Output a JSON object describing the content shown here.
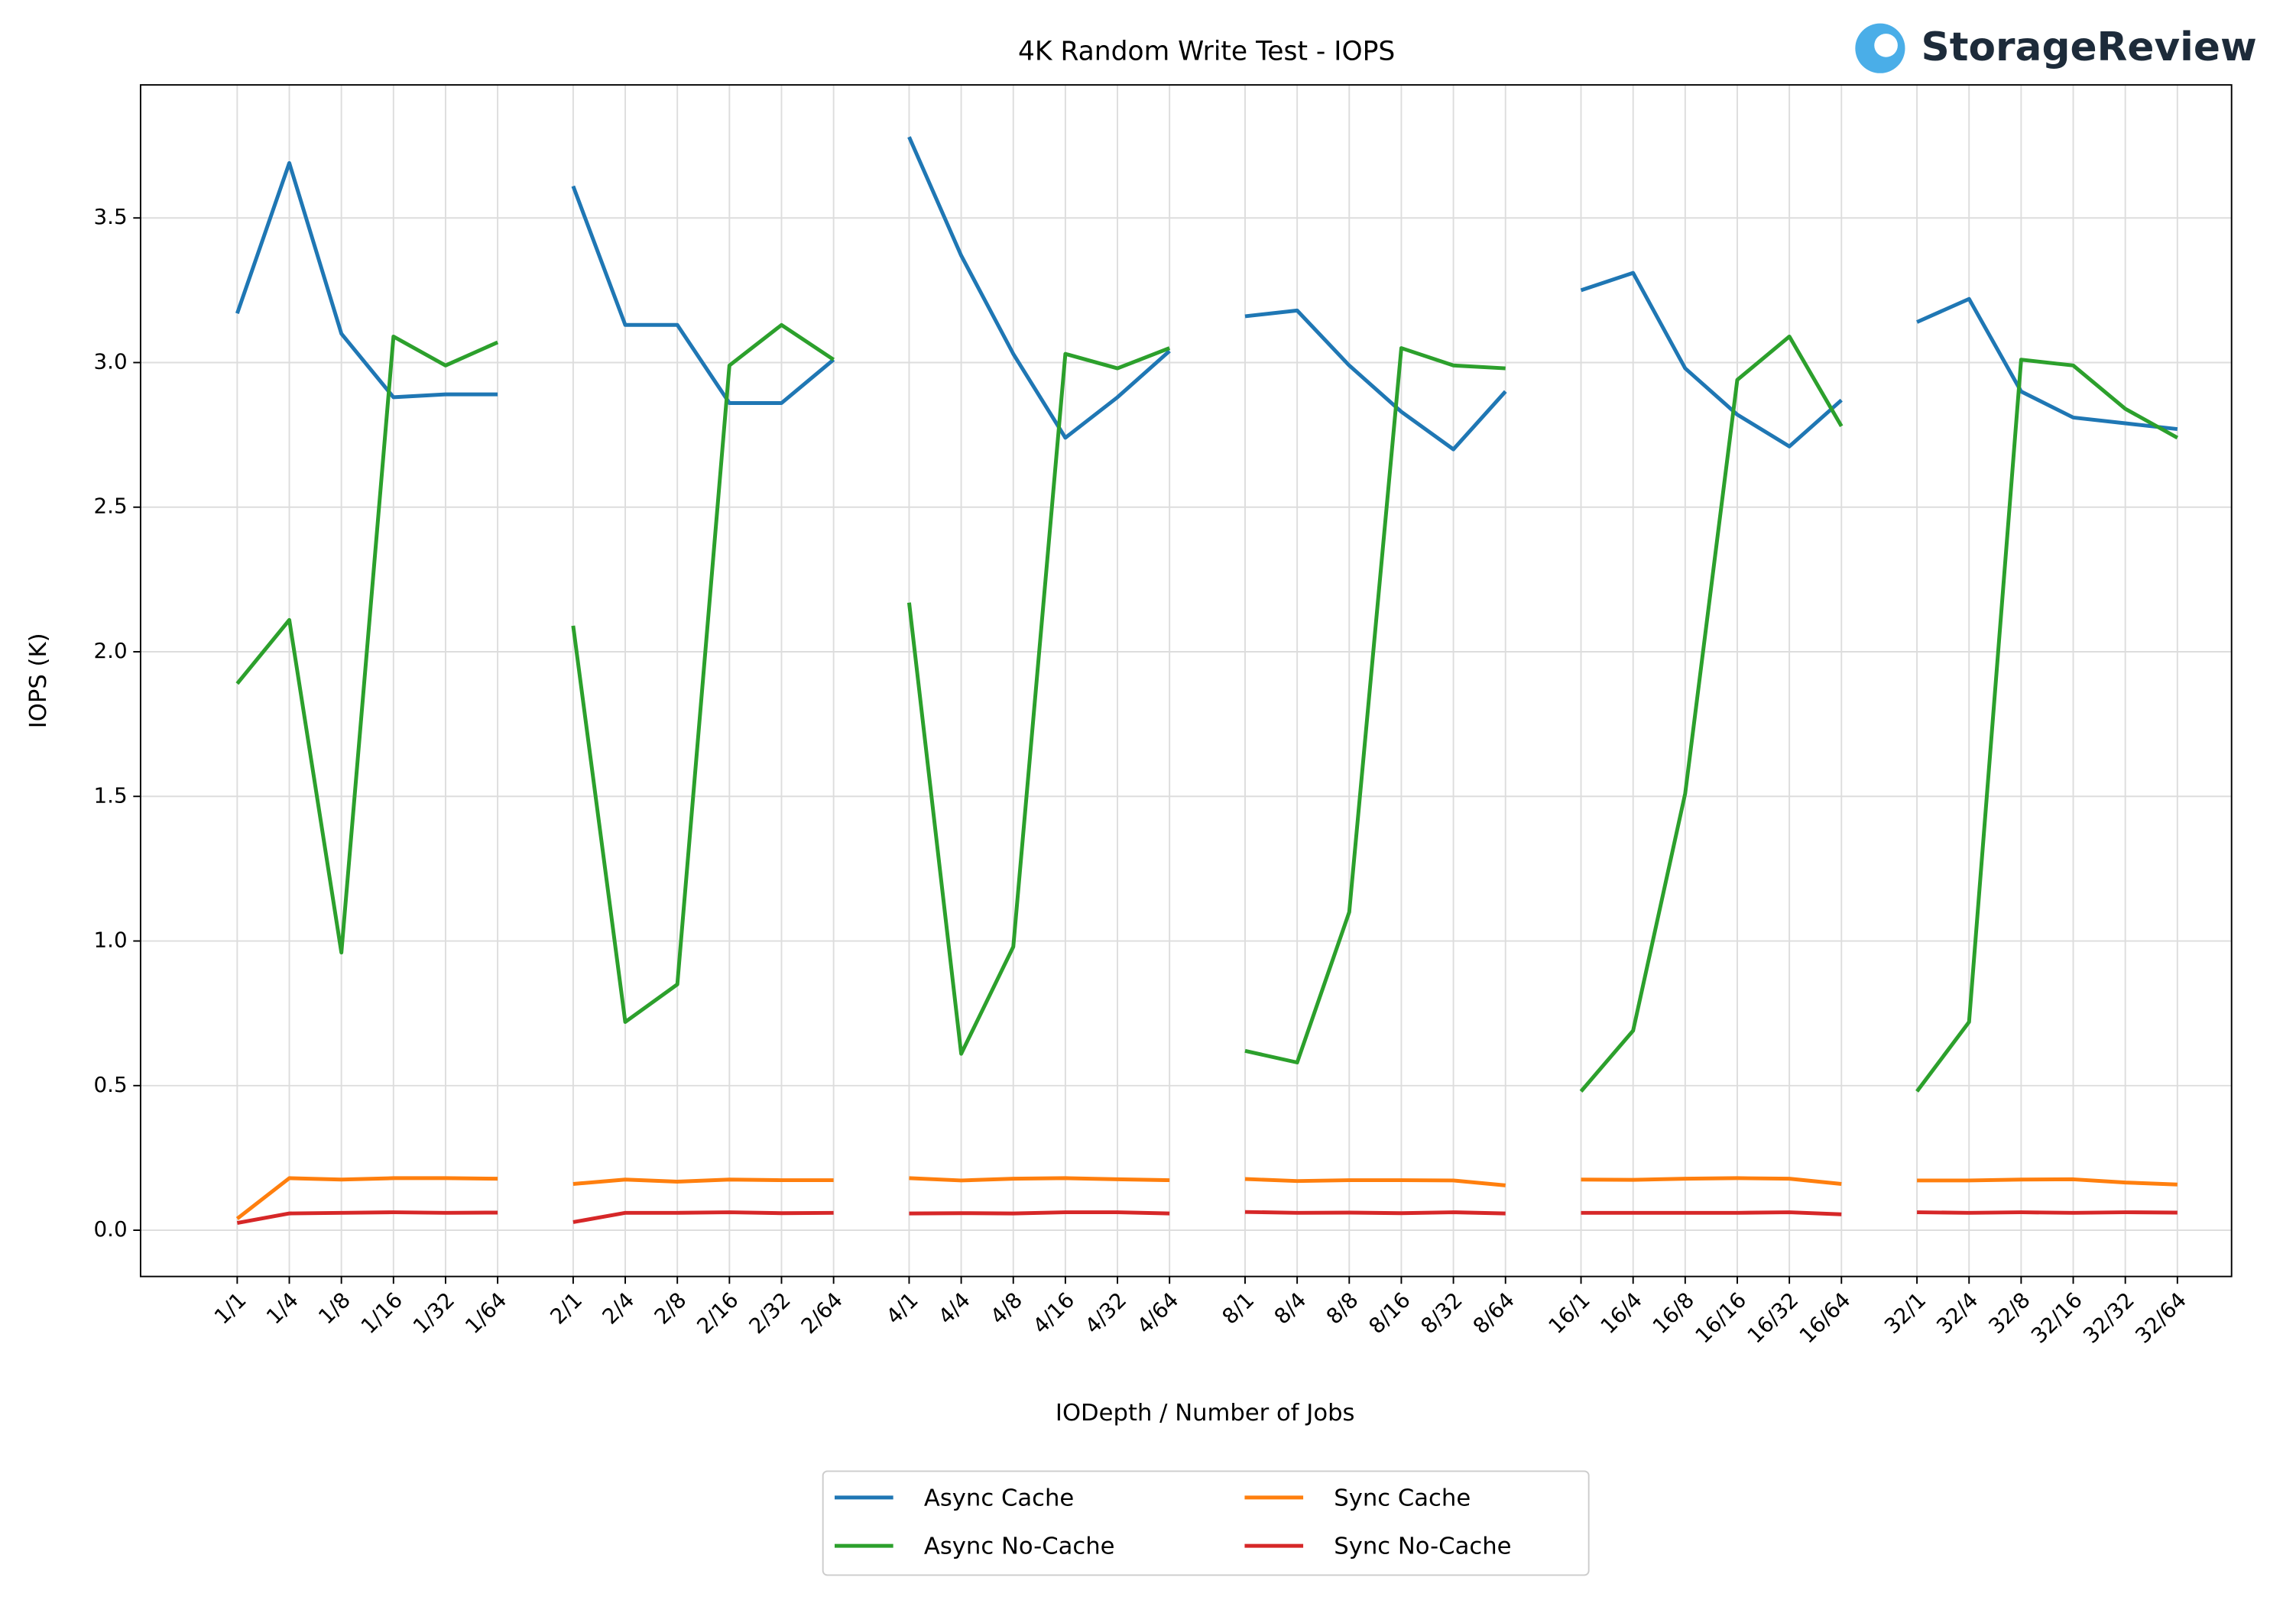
{
  "chart_data": {
    "type": "line",
    "title": "4K Random Write Test - IOPS",
    "logo": "StorageReview",
    "x_label": "IODepth / Number of Jobs",
    "y_label": "IOPS (K)",
    "categories": [
      "1/1",
      "1/4",
      "1/8",
      "1/16",
      "1/32",
      "1/64",
      null,
      "2/1",
      "2/4",
      "2/8",
      "2/16",
      "2/32",
      "2/64",
      null,
      "4/1",
      "4/4",
      "4/8",
      "4/16",
      "4/32",
      "4/64",
      null,
      "8/1",
      "8/4",
      "8/8",
      "8/16",
      "8/32",
      "8/64",
      null,
      "16/1",
      "16/4",
      "16/8",
      "16/16",
      "16/32",
      "16/64",
      null,
      "32/1",
      "32/4",
      "32/8",
      "32/16",
      "32/32",
      "32/64"
    ],
    "series": [
      {
        "name": "Async Cache",
        "color": "#1f77b4",
        "values": [
          3.17,
          3.69,
          3.1,
          2.88,
          2.89,
          2.89,
          null,
          3.61,
          3.13,
          3.13,
          2.86,
          2.86,
          3.01,
          null,
          3.78,
          3.37,
          3.03,
          2.74,
          2.88,
          3.04,
          null,
          3.16,
          3.18,
          2.99,
          2.83,
          2.7,
          2.9,
          null,
          3.25,
          3.31,
          2.98,
          2.82,
          2.71,
          2.87,
          null,
          3.14,
          3.22,
          2.9,
          2.81,
          2.79,
          2.77
        ]
      },
      {
        "name": "Async No-Cache",
        "color": "#2ca02c",
        "values": [
          1.89,
          2.11,
          0.96,
          3.09,
          2.99,
          3.07,
          null,
          2.09,
          0.72,
          0.85,
          2.99,
          3.13,
          3.01,
          null,
          2.17,
          0.61,
          0.98,
          3.03,
          2.98,
          3.05,
          null,
          0.62,
          0.58,
          1.1,
          3.05,
          2.99,
          2.98,
          null,
          0.48,
          0.69,
          1.51,
          2.94,
          3.09,
          2.78,
          null,
          0.48,
          0.72,
          3.01,
          2.99,
          2.84,
          2.74
        ]
      },
      {
        "name": "Sync Cache",
        "color": "#ff7f0e",
        "values": [
          0.04,
          0.18,
          0.175,
          0.18,
          0.18,
          0.178,
          null,
          0.16,
          0.175,
          0.168,
          0.175,
          0.173,
          0.173,
          null,
          0.18,
          0.172,
          0.178,
          0.18,
          0.176,
          0.173,
          null,
          0.177,
          0.17,
          0.173,
          0.173,
          0.172,
          0.155,
          null,
          0.175,
          0.174,
          0.178,
          0.18,
          0.178,
          0.16,
          null,
          0.172,
          0.172,
          0.175,
          0.176,
          0.165,
          0.158
        ]
      },
      {
        "name": "Sync No-Cache",
        "color": "#d62728",
        "values": [
          0.025,
          0.058,
          0.06,
          0.062,
          0.06,
          0.061,
          null,
          0.028,
          0.06,
          0.06,
          0.062,
          0.059,
          0.06,
          null,
          0.058,
          0.059,
          0.058,
          0.062,
          0.062,
          0.058,
          null,
          0.063,
          0.06,
          0.061,
          0.059,
          0.062,
          0.058,
          null,
          0.06,
          0.06,
          0.06,
          0.06,
          0.062,
          0.055,
          null,
          0.062,
          0.06,
          0.062,
          0.06,
          0.062,
          0.061
        ]
      }
    ],
    "ylim": [
      -0.16,
      3.96
    ],
    "yticks": [
      {
        "value": 0,
        "label": "0.0"
      },
      0.5,
      {
        "value": 1,
        "label": "1.0"
      },
      1.5,
      {
        "value": 2,
        "label": "2.0"
      },
      2.5,
      {
        "value": 3,
        "label": "3.0"
      },
      3.5
    ],
    "grid": true,
    "legend": "bottom"
  }
}
